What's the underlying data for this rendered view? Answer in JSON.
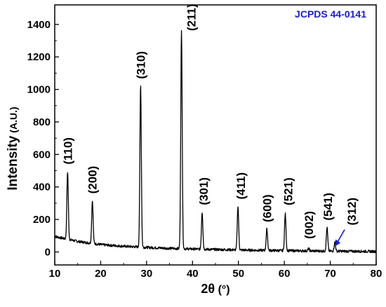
{
  "chart_data": {
    "type": "line",
    "title": "",
    "xlabel_main": "2θ",
    "xlabel_unit": " (°)",
    "ylabel_main": "Intensity",
    "ylabel_unit": " (A.U.)",
    "xlim": [
      10,
      80
    ],
    "ylim": [
      -80,
      1520
    ],
    "xticks": [
      10,
      20,
      30,
      40,
      50,
      60,
      70,
      80
    ],
    "yticks": [
      0,
      200,
      400,
      600,
      800,
      1000,
      1200,
      1400
    ],
    "grid": false,
    "legend": "none",
    "series_color": "#000000",
    "annotation_color": "#1a1ad6",
    "reference_label": "JCPDS 44-0141",
    "series": [
      {
        "peaks": [
          {
            "x": 12.8,
            "y": 495,
            "label": "(110)"
          },
          {
            "x": 18.2,
            "y": 315,
            "label": "(200)"
          },
          {
            "x": 28.7,
            "y": 1030,
            "label": "(310)"
          },
          {
            "x": 37.6,
            "y": 1360,
            "label": "(211)"
          },
          {
            "x": 42.1,
            "y": 245,
            "label": "(301)"
          },
          {
            "x": 49.9,
            "y": 280,
            "label": "(411)"
          },
          {
            "x": 56.2,
            "y": 140,
            "label": "(600)"
          },
          {
            "x": 60.2,
            "y": 235,
            "label": "(521)"
          },
          {
            "x": 65.3,
            "y": 20,
            "label": "(002)"
          },
          {
            "x": 69.3,
            "y": 150,
            "label": "(541)"
          },
          {
            "x": 71.0,
            "y": 60,
            "label": "(312)"
          }
        ],
        "baseline": [
          {
            "x": 10,
            "y": 95
          },
          {
            "x": 15,
            "y": 65
          },
          {
            "x": 20,
            "y": 45
          },
          {
            "x": 25,
            "y": 35
          },
          {
            "x": 30,
            "y": 28
          },
          {
            "x": 35,
            "y": 22
          },
          {
            "x": 40,
            "y": 18
          },
          {
            "x": 50,
            "y": 12
          },
          {
            "x": 60,
            "y": 8
          },
          {
            "x": 70,
            "y": 5
          },
          {
            "x": 80,
            "y": 3
          }
        ]
      }
    ]
  }
}
